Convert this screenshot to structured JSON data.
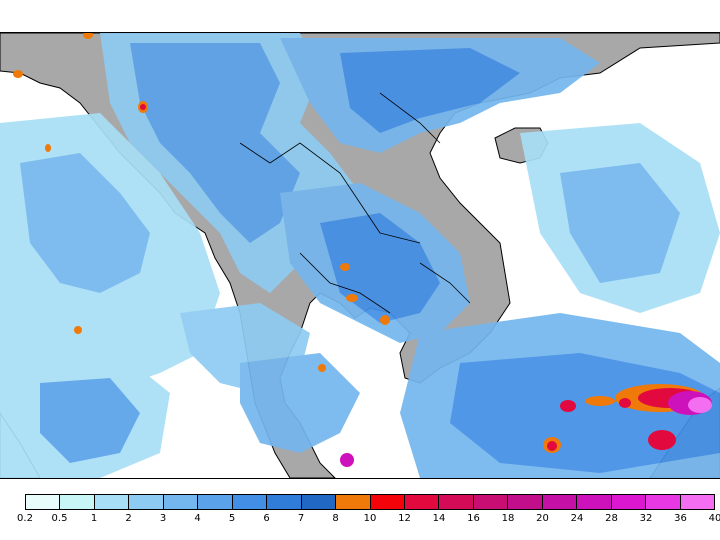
{
  "legend": {
    "ticks": [
      "0.2",
      "0.5",
      "1",
      "2",
      "3",
      "4",
      "5",
      "6",
      "7",
      "8",
      "10",
      "12",
      "14",
      "16",
      "18",
      "20",
      "24",
      "28",
      "32",
      "36",
      "40"
    ],
    "colors": [
      "#e8fcfc",
      "#c8f6f7",
      "#a9dff6",
      "#8ecbf2",
      "#74b6ee",
      "#5aa2ea",
      "#438fe6",
      "#2f7dd8",
      "#2068c4",
      "#ef7a09",
      "#f4040a",
      "#e2093e",
      "#d40c58",
      "#c90e73",
      "#c30e8c",
      "#c410a4",
      "#ce12bb",
      "#db18cf",
      "#e838e4",
      "#f36ef1"
    ],
    "colors_note": "rainfall color scale"
  },
  "map": {
    "land_color": "#a8a8a8",
    "ocean_color": "#ffffff",
    "coastline_color": "#000000"
  }
}
